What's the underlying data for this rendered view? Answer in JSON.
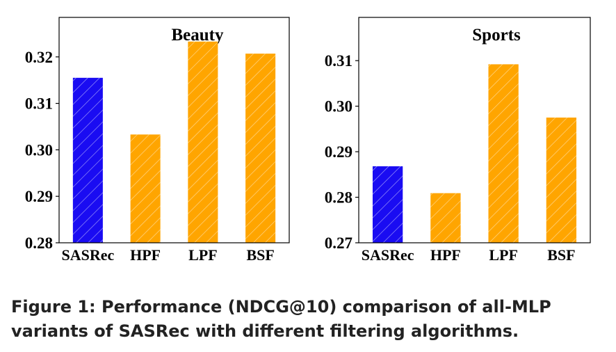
{
  "chart_data": [
    {
      "type": "bar",
      "title": "Beauty",
      "categories": [
        "SASRec",
        "HPF",
        "LPF",
        "BSF"
      ],
      "values": [
        0.3155,
        0.3033,
        0.3233,
        0.3207
      ],
      "bar_colors": [
        "#1a0cf2",
        "#ffa500",
        "#ffa500",
        "#ffa500"
      ],
      "ylim": [
        0.28,
        0.3285
      ],
      "yticks": [
        0.28,
        0.29,
        0.3,
        0.31,
        0.32
      ],
      "ytick_labels": [
        "0.28",
        "0.29",
        "0.30",
        "0.31",
        "0.32"
      ],
      "xlabel": "",
      "ylabel": "",
      "grid": false
    },
    {
      "type": "bar",
      "title": "Sports",
      "categories": [
        "SASRec",
        "HPF",
        "LPF",
        "BSF"
      ],
      "values": [
        0.2868,
        0.2809,
        0.3092,
        0.2975
      ],
      "bar_colors": [
        "#1a0cf2",
        "#ffa500",
        "#ffa500",
        "#ffa500"
      ],
      "ylim": [
        0.27,
        0.3195
      ],
      "yticks": [
        0.27,
        0.28,
        0.29,
        0.3,
        0.31
      ],
      "ytick_labels": [
        "0.27",
        "0.28",
        "0.29",
        "0.30",
        "0.31"
      ],
      "xlabel": "",
      "ylabel": "",
      "grid": false
    }
  ],
  "caption": "Figure 1: Performance (NDCG@10) comparison of all-MLP variants of SASRec with different filtering algorithms."
}
